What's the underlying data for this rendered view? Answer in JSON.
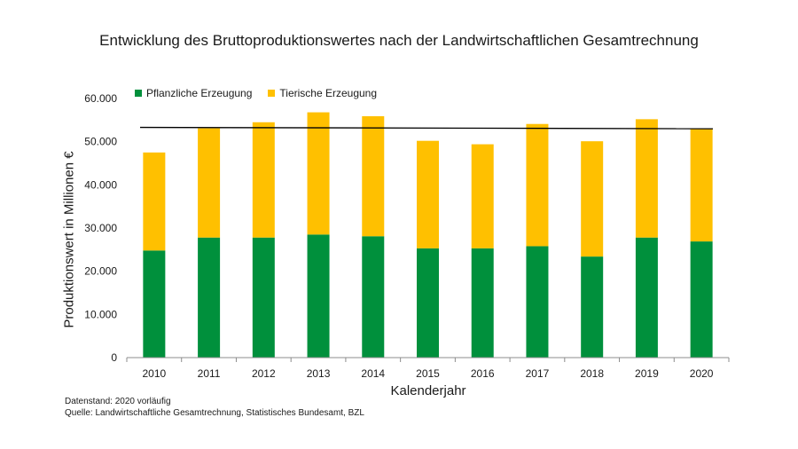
{
  "chart_data": {
    "type": "bar",
    "stacked": true,
    "title": "Entwicklung des Bruttoproduktionswertes nach der Landwirtschaftlichen Gesamtrechnung",
    "xlabel": "Kalenderjahr",
    "ylabel": "Produktionswert in Millionen €",
    "ylim": [
      0,
      60000
    ],
    "yticks": [
      "0",
      "10.000",
      "20.000",
      "30.000",
      "40.000",
      "50.000",
      "60.000"
    ],
    "ytick_values": [
      0,
      10000,
      20000,
      30000,
      40000,
      50000,
      60000
    ],
    "categories": [
      "2010",
      "2011",
      "2012",
      "2013",
      "2014",
      "2015",
      "2016",
      "2017",
      "2018",
      "2019",
      "2020"
    ],
    "series": [
      {
        "name": "Pflanzliche Erzeugung",
        "color": "#00903c",
        "values": [
          24800,
          27800,
          27800,
          28500,
          28100,
          25300,
          25300,
          25800,
          23400,
          27800,
          26900
        ]
      },
      {
        "name": "Tierische Erzeugung",
        "color": "#ffc000",
        "values": [
          22700,
          25300,
          26700,
          28300,
          27800,
          24900,
          24100,
          28300,
          26700,
          27400,
          26100
        ]
      }
    ],
    "reference_line": {
      "value": 53000,
      "color": "#000000"
    },
    "legend_position": "top-left"
  },
  "notes": {
    "line1": "Datenstand: 2020 vorläufig",
    "line2": "Quelle: Landwirtschaftliche Gesamtrechnung, Statistisches Bundesamt, BZL"
  }
}
